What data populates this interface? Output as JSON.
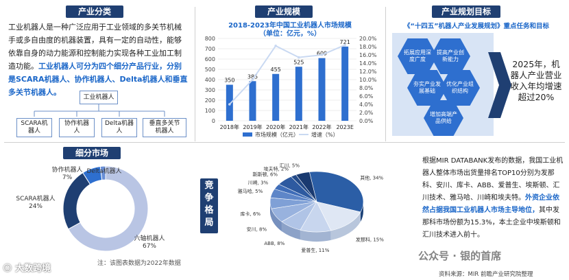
{
  "sections": {
    "classification": "产业分类",
    "scale": "产业规模",
    "goal": "产业规划目标",
    "segment": "细分市场",
    "competition": "竞争格局"
  },
  "classification": {
    "text_normal": "工业机器人是一种广泛应用于工业领域的多关节机械手或多自由度的机器装置，具有一定的自动性，能够依靠自身的动力能源和控制能力实现各种工业加工制造功能。",
    "text_highlight": "工业机器人可分为四个细分产品行业，分别是SCARA机器人、协作机器人、Delta机器人和垂直多关节机器人。",
    "tree_root": "工业机器人",
    "tree_leaves": [
      "SCARA机器人",
      "协作机器人",
      "Delta机器人",
      "垂直多关节机器人"
    ]
  },
  "goal": {
    "title": "《“十四五”机器人产业发展规划》重点任务和目标",
    "hexes": [
      "拓展应用深度广度",
      "提高产业创新能力",
      "夯实产业发展基础",
      "优化产业组织结构",
      "增加高端产品供给"
    ],
    "target_text": "2025年，机器人产业营业收入年均增速超过20%"
  },
  "chart_data": [
    {
      "type": "bar",
      "title": "2018-2023年中国工业机器人市场规模",
      "subtitle": "（单位：亿元，%）",
      "categories": [
        "2018年",
        "2019年",
        "2020年",
        "2021年",
        "2022年",
        "2023E"
      ],
      "series": [
        {
          "name": "市场规模（亿元）",
          "type": "bar",
          "values": [
            350,
            385,
            455,
            525,
            609,
            721
          ],
          "color": "#2e6fcf"
        },
        {
          "name": "增速（%）",
          "type": "line",
          "values": [
            4.0,
            10.0,
            18.2,
            15.4,
            16.0,
            18.4
          ],
          "color": "#c9d9f2"
        }
      ],
      "ylim_left": [
        0,
        800
      ],
      "yticks_left": [
        0,
        100,
        200,
        300,
        400,
        500,
        600,
        700,
        800
      ],
      "ylim_right": [
        0,
        20
      ],
      "yticks_right": [
        "0.0%",
        "2.0%",
        "4.0%",
        "6.0%",
        "8.0%",
        "10.0%",
        "12.0%",
        "14.0%",
        "16.0%",
        "18.0%",
        "20.0%"
      ],
      "legend": "bottom"
    },
    {
      "type": "pie",
      "variant": "donut",
      "slices": [
        {
          "label": "六轴机器人",
          "value": 67,
          "label_text": "67%",
          "color": "#b9c5e4"
        },
        {
          "label": "SCARA机器人",
          "value": 24,
          "label_text": "24%",
          "color": "#1f3f72"
        },
        {
          "label": "协作机器人",
          "value": 7,
          "label_text": "7%",
          "color": "#2e6fcf"
        },
        {
          "label": "Delta机器人",
          "value": 2,
          "label_text": "",
          "color": "#6a8fd6"
        }
      ],
      "note": "注：该图表数据为2022年数据"
    },
    {
      "type": "pie",
      "variant": "3d",
      "slices": [
        {
          "label": "其他",
          "value": 34,
          "label_text": "34%"
        },
        {
          "label": "发那科",
          "value": 15,
          "label_text": "15%"
        },
        {
          "label": "爱普生",
          "value": 11,
          "label_text": "11%"
        },
        {
          "label": "ABB",
          "value": 8,
          "label_text": "8%"
        },
        {
          "label": "安川",
          "value": 8,
          "label_text": "8%"
        },
        {
          "label": "库卡",
          "value": 6,
          "label_text": "6%"
        },
        {
          "label": "雅马哈",
          "value": 5,
          "label_text": "5%"
        },
        {
          "label": "川崎",
          "value": 3,
          "label_text": "3%"
        },
        {
          "label": "斯斯顿",
          "value": 6,
          "label_text": "6%"
        },
        {
          "label": "埃夫特",
          "value": 2,
          "label_text": "2%"
        },
        {
          "label": "汇川",
          "value": 5,
          "label_text": "5%"
        }
      ]
    }
  ],
  "competition": {
    "text_normal": "根据MIR DATABANK发布的数据，我国工业机器人整体市场出货量排名TOP10分别为发那科、安川、库卡、ABB、爱普生、埃斯顿、汇川技术、雅马哈、川崎和埃夫特。",
    "text_highlight": "外资企业依然占据我国工业机器人市场主导地位，",
    "text_tail": "其中发那科市场份额为15.3%，本土企业中埃斯顿和汇川技术进入前十。",
    "source": "资料来源：MIR 前瞻产业研究院整理"
  },
  "watermarks": {
    "left": "大数跨境",
    "right": "公众号 · 银的首席"
  }
}
